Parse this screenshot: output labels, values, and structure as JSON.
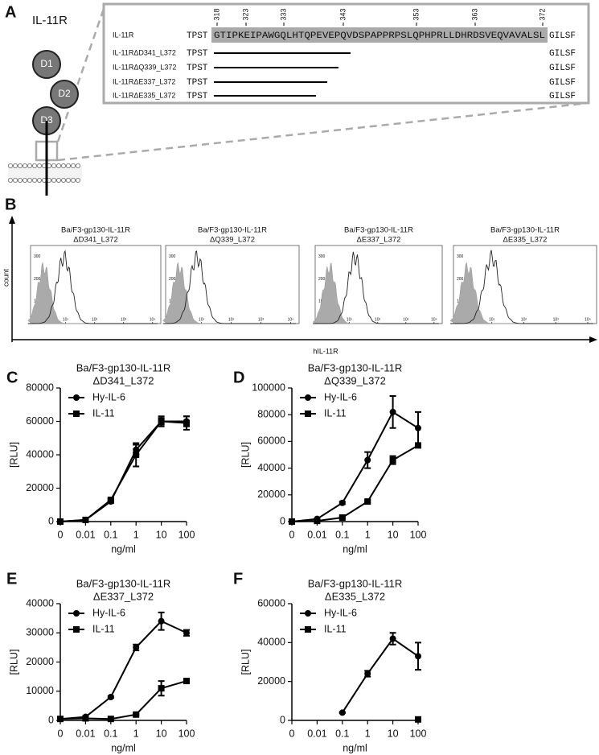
{
  "panel_a": {
    "label": "A",
    "title": "IL-11R",
    "domains": [
      "D1",
      "D2",
      "D3"
    ],
    "positions": [
      "318",
      "323",
      "333",
      "343",
      "353",
      "363",
      "372"
    ],
    "rows": [
      {
        "name": "IL-11R",
        "left": "TPST",
        "middle": "GTIPKEIPAWGQLHTQPEVEPQVDSPAPPRPSLQPHPRLLDHRDSVEQVAVALSL",
        "right": "GILSF"
      },
      {
        "name": "IL-11RΔD341_L372",
        "left": "TPST",
        "right": "GILSF"
      },
      {
        "name": "IL-11RΔQ339_L372",
        "left": "TPST",
        "right": "GILSF"
      },
      {
        "name": "IL-11RΔE337_L372",
        "left": "TPST",
        "right": "GILSF"
      },
      {
        "name": "IL-11RΔE335_L372",
        "left": "TPST",
        "right": "GILSF"
      }
    ]
  },
  "panel_b": {
    "label": "B",
    "y_label": "count",
    "x_label": "hIL-11R",
    "ylim": [
      0,
      350
    ],
    "xlim": [
      0.8,
      15000
    ],
    "yticks": [
      100,
      200,
      300
    ],
    "xticks": [
      {
        "value": 1,
        "label": "10⁰"
      },
      {
        "value": 10,
        "label": "10¹"
      },
      {
        "value": 100,
        "label": "10²"
      },
      {
        "value": 1000,
        "label": "10³"
      },
      {
        "value": 10000,
        "label": "10⁴"
      }
    ],
    "plots": [
      {
        "title": [
          "Ba/F3-gp130-IL-11R",
          "ΔD341_L372"
        ]
      },
      {
        "title": [
          "Ba/F3-gp130-IL-11R",
          "ΔQ339_L372"
        ]
      },
      {
        "title": [
          "Ba/F3-gp130-IL-11R",
          "ΔE337_L372"
        ]
      },
      {
        "title": [
          "Ba/F3-gp130-IL-11R",
          "ΔE335_L372"
        ]
      }
    ]
  },
  "chart_data": [
    {
      "type": "line",
      "label": "C",
      "title": [
        "Ba/F3-gp130-IL-11R",
        "ΔD341_L372"
      ],
      "x_label": "ng/ml",
      "y_label": "[RLU]",
      "categories": [
        "0",
        "0.01",
        "0.1",
        "1",
        "10",
        "100"
      ],
      "ylim": [
        0,
        80000
      ],
      "yticks": [
        0,
        20000,
        40000,
        60000,
        80000
      ],
      "series": [
        {
          "name": "Hy-IL-6",
          "marker": "circle",
          "color": "#000000",
          "values": [
            0,
            1000,
            12000,
            43000,
            60000,
            60000
          ],
          "errors": [
            0,
            0,
            1000,
            3000,
            3000,
            3000
          ]
        },
        {
          "name": "IL-11",
          "marker": "square",
          "color": "#000000",
          "values": [
            0,
            1000,
            13000,
            40000,
            60000,
            59000
          ],
          "errors": [
            0,
            0,
            1000,
            7000,
            2000,
            4000
          ]
        }
      ]
    },
    {
      "type": "line",
      "label": "D",
      "title": [
        "Ba/F3-gp130-IL-11R",
        "ΔQ339_L372"
      ],
      "x_label": "ng/ml",
      "y_label": "[RLU]",
      "categories": [
        "0",
        "0.01",
        "0.1",
        "1",
        "10",
        "100"
      ],
      "ylim": [
        0,
        100000
      ],
      "yticks": [
        0,
        20000,
        40000,
        60000,
        80000,
        100000
      ],
      "series": [
        {
          "name": "Hy-IL-6",
          "marker": "circle",
          "color": "#000000",
          "values": [
            0,
            2000,
            14000,
            46000,
            82000,
            70000
          ],
          "errors": [
            0,
            0,
            1000,
            6000,
            12000,
            12000
          ]
        },
        {
          "name": "IL-11",
          "marker": "square",
          "color": "#000000",
          "values": [
            0,
            500,
            3000,
            15000,
            46000,
            57000
          ],
          "errors": [
            0,
            0,
            500,
            1000,
            3000,
            1000
          ]
        }
      ]
    },
    {
      "type": "line",
      "label": "E",
      "title": [
        "Ba/F3-gp130-IL-11R",
        "ΔE337_L372"
      ],
      "x_label": "ng/ml",
      "y_label": "[RLU]",
      "categories": [
        "0",
        "0.01",
        "0.1",
        "1",
        "10",
        "100"
      ],
      "ylim": [
        0,
        40000
      ],
      "yticks": [
        0,
        10000,
        20000,
        30000,
        40000
      ],
      "series": [
        {
          "name": "Hy-IL-6",
          "marker": "circle",
          "color": "#000000",
          "values": [
            500,
            1200,
            8000,
            25000,
            34000,
            30000
          ],
          "errors": [
            0,
            0,
            300,
            1000,
            3000,
            1000
          ]
        },
        {
          "name": "IL-11",
          "marker": "square",
          "color": "#000000",
          "values": [
            500,
            700,
            500,
            2000,
            11000,
            13500
          ],
          "errors": [
            0,
            0,
            0,
            300,
            2500,
            500
          ]
        }
      ]
    },
    {
      "type": "line",
      "label": "F",
      "title": [
        "Ba/F3-gp130-IL-11R",
        "ΔE335_L372"
      ],
      "x_label": "ng/ml",
      "y_label": "[RLU]",
      "categories": [
        "0",
        "0.01",
        "0.1",
        "1",
        "10",
        "100"
      ],
      "ylim": [
        0,
        60000
      ],
      "yticks": [
        0,
        20000,
        40000,
        60000
      ],
      "series": [
        {
          "name": "Hy-IL-6",
          "marker": "circle",
          "color": "#000000",
          "values": [
            null,
            null,
            4000,
            24000,
            42000,
            33000
          ],
          "errors": [
            null,
            null,
            300,
            1500,
            3000,
            7000
          ]
        },
        {
          "name": "IL-11",
          "marker": "square",
          "color": "#000000",
          "values": [
            null,
            null,
            null,
            null,
            null,
            500
          ],
          "errors": [
            null,
            null,
            null,
            null,
            null,
            0
          ]
        }
      ]
    }
  ]
}
